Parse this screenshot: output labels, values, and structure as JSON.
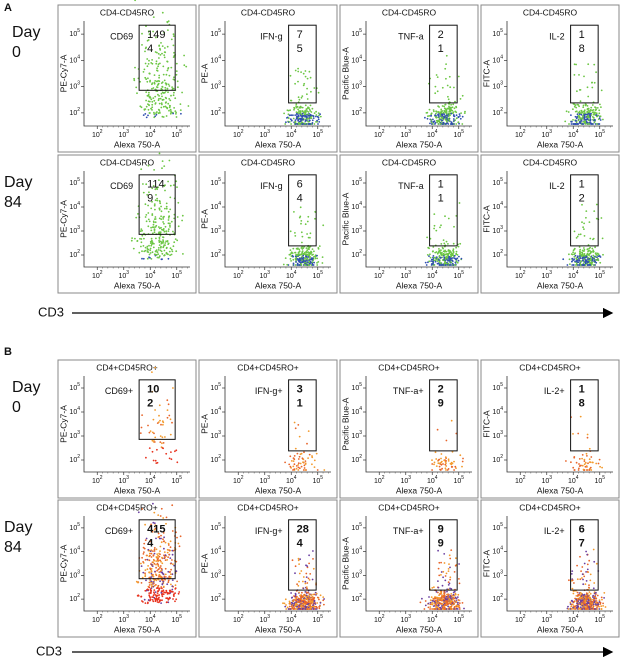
{
  "panels": [
    {
      "label": "A",
      "arrow_label": "CD3",
      "rows": [
        {
          "day": [
            "Day",
            "0"
          ],
          "plots": [
            {
              "title": "CD4-CD45RO",
              "gate": "CD69",
              "y_label": "PE-Cy7-A",
              "x_label": "Alexa 750-A",
              "count": [
                "149",
                "4"
              ],
              "count_color": "#111"
            },
            {
              "title": "CD4-CD45RO",
              "gate": "IFN-g",
              "y_label": "PE-A",
              "x_label": "Alexa 750-A",
              "count": [
                "7",
                "5"
              ],
              "count_color": "#e8321e"
            },
            {
              "title": "CD4-CD45RO",
              "gate": "TNF-a",
              "y_label": "Pacific Blue-A",
              "x_label": "Alexa 750-A",
              "count": [
                "2",
                "1"
              ],
              "count_color": "#e8321e"
            },
            {
              "title": "CD4-CD45RO",
              "gate": "IL-2",
              "y_label": "FITC-A",
              "x_label": "Alexa 750-A",
              "count": [
                "1",
                "8"
              ],
              "count_color": "#111"
            }
          ]
        },
        {
          "day": [
            "Day",
            "84"
          ],
          "plots": [
            {
              "title": "CD4-CD45RO",
              "gate": "CD69",
              "y_label": "PE-Cy7-A",
              "x_label": "Alexa 750-A",
              "count": [
                "114",
                "9"
              ],
              "count_color": "#111"
            },
            {
              "title": "CD4-CD45RO",
              "gate": "IFN-g",
              "y_label": "PE-A",
              "x_label": "Alexa 750-A",
              "count": [
                "6",
                "4"
              ],
              "count_color": "#e8321e"
            },
            {
              "title": "CD4-CD45RO",
              "gate": "TNF-a",
              "y_label": "Pacific Blue-A",
              "x_label": "Alexa 750-A",
              "count": [
                "1",
                "1"
              ],
              "count_color": "#e8321e"
            },
            {
              "title": "CD4-CD45RO",
              "gate": "IL-2",
              "y_label": "FITC-A",
              "x_label": "Alexa 750-A",
              "count": [
                "1",
                "2"
              ],
              "count_color": "#111"
            }
          ]
        }
      ]
    },
    {
      "label": "B",
      "arrow_label": "CD3",
      "rows": [
        {
          "day": [
            "Day",
            "0"
          ],
          "plots": [
            {
              "title": "CD4+CD45RO+",
              "gate": "CD69+",
              "y_label": "PE-Cy7-A",
              "x_label": "Alexa 750-A",
              "count": [
                "10",
                "2"
              ],
              "count_color": "#111"
            },
            {
              "title": "CD4+CD45RO+",
              "gate": "IFN-g+",
              "y_label": "PE-A",
              "x_label": "Alexa 750-A",
              "count": [
                "3",
                "1"
              ],
              "count_color": "#111"
            },
            {
              "title": "CD4+CD45RO+",
              "gate": "TNF-a+",
              "y_label": "Pacific Blue-A",
              "x_label": "Alexa 750-A",
              "count": [
                "2",
                "9"
              ],
              "count_color": "#111"
            },
            {
              "title": "CD4+CD45RO+",
              "gate": "IL-2+",
              "y_label": "FITC-A",
              "x_label": "Alexa 750-A",
              "count": [
                "1",
                "8"
              ],
              "count_color": "#111"
            }
          ]
        },
        {
          "day": [
            "Day",
            "84"
          ],
          "plots": [
            {
              "title": "CD4+CD45RO+",
              "gate": "CD69+",
              "y_label": "PE-Cy7-A",
              "x_label": "Alexa 750-A",
              "count": [
                "415",
                "4"
              ],
              "count_color": "#e8321e"
            },
            {
              "title": "CD4+CD45RO+",
              "gate": "IFN-g+",
              "y_label": "PE-A",
              "x_label": "Alexa 750-A",
              "count": [
                "28",
                "4"
              ],
              "count_color": "#e8321e"
            },
            {
              "title": "CD4+CD45RO+",
              "gate": "TNF-a+",
              "y_label": "Pacific Blue-A",
              "x_label": "Alexa 750-A",
              "count": [
                "9",
                "9"
              ],
              "count_color": "#e8321e"
            },
            {
              "title": "CD4+CD45RO+",
              "gate": "IL-2+",
              "y_label": "FITC-A",
              "x_label": "Alexa 750-A",
              "count": [
                "6",
                "7"
              ],
              "count_color": "#e8321e"
            }
          ]
        }
      ]
    }
  ],
  "tick_base": "10",
  "tick_exponents": [
    "2",
    "3",
    "4",
    "5"
  ]
}
